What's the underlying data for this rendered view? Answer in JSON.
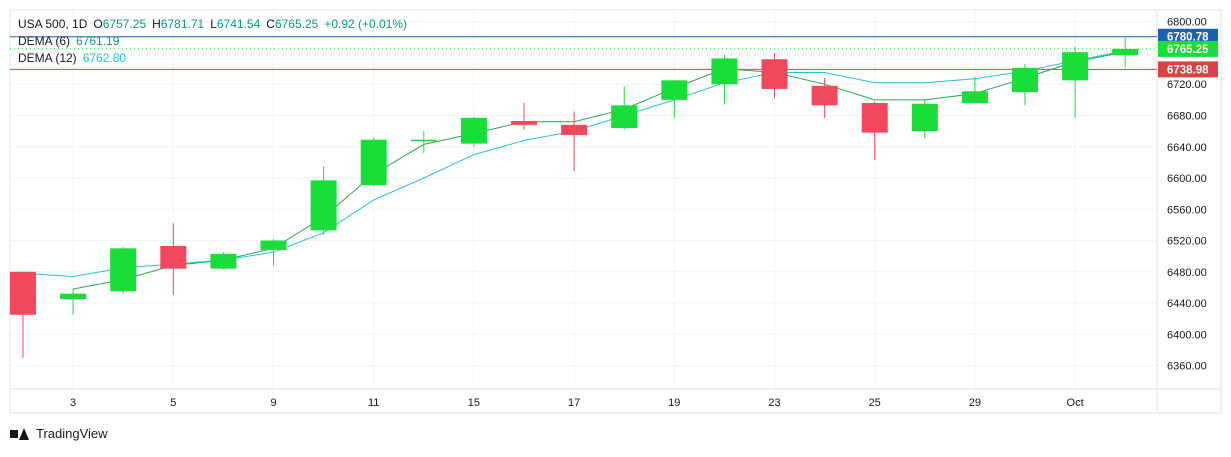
{
  "header": {
    "symbol": "USA 500",
    "interval": "1D",
    "ohlc": {
      "o_label": "O",
      "o": "6757.25",
      "h_label": "H",
      "h": "6781.71",
      "l_label": "L",
      "l": "6741.54",
      "c_label": "C",
      "c": "6765.25",
      "change": "+0.92 (+0.01%)"
    },
    "indicators": [
      {
        "label": "DEMA (6)",
        "value": "6761.19"
      },
      {
        "label": "DEMA (12)",
        "value": "6762.80"
      }
    ]
  },
  "footer": {
    "brand": "TradingView"
  },
  "colors": {
    "up": "#19dd39",
    "down": "#f2485e",
    "dema6": "#2fa34a",
    "dema12": "#22c4d6",
    "price_line_blue": "#1f5fb0",
    "price_line_red": "#d64545",
    "label_current": "#19dd39"
  },
  "chart_data": {
    "type": "candlestick",
    "ylim": [
      6330,
      6815
    ],
    "y_ticks": [
      6360,
      6400,
      6440,
      6480,
      6520,
      6560,
      6600,
      6640,
      6680,
      6720,
      6760,
      6800
    ],
    "x_tick_labels": [
      {
        "index": 1,
        "label": "3"
      },
      {
        "index": 3,
        "label": "5"
      },
      {
        "index": 5,
        "label": "9"
      },
      {
        "index": 7,
        "label": "11"
      },
      {
        "index": 9,
        "label": "15"
      },
      {
        "index": 11,
        "label": "17"
      },
      {
        "index": 13,
        "label": "19"
      },
      {
        "index": 15,
        "label": "23"
      },
      {
        "index": 17,
        "label": "25"
      },
      {
        "index": 19,
        "label": "29"
      },
      {
        "index": 21,
        "label": "Oct"
      }
    ],
    "candles": [
      {
        "o": 6480,
        "h": 6480,
        "l": 6370,
        "c": 6425
      },
      {
        "o": 6445,
        "h": 6458,
        "l": 6425,
        "c": 6452
      },
      {
        "o": 6455,
        "h": 6512,
        "l": 6452,
        "c": 6510
      },
      {
        "o": 6513,
        "h": 6542,
        "l": 6450,
        "c": 6484
      },
      {
        "o": 6484,
        "h": 6505,
        "l": 6483,
        "c": 6503
      },
      {
        "o": 6508,
        "h": 6522,
        "l": 6488,
        "c": 6520
      },
      {
        "o": 6533,
        "h": 6615,
        "l": 6527,
        "c": 6597
      },
      {
        "o": 6591,
        "h": 6652,
        "l": 6590,
        "c": 6649
      },
      {
        "o": 6647,
        "h": 6660,
        "l": 6632,
        "c": 6649
      },
      {
        "o": 6644,
        "h": 6678,
        "l": 6640,
        "c": 6677
      },
      {
        "o": 6673,
        "h": 6696,
        "l": 6662,
        "c": 6668
      },
      {
        "o": 6668,
        "h": 6685,
        "l": 6609,
        "c": 6655
      },
      {
        "o": 6664,
        "h": 6717,
        "l": 6662,
        "c": 6693
      },
      {
        "o": 6700,
        "h": 6725,
        "l": 6677,
        "c": 6725
      },
      {
        "o": 6720,
        "h": 6757,
        "l": 6694,
        "c": 6753
      },
      {
        "o": 6752,
        "h": 6760,
        "l": 6702,
        "c": 6714
      },
      {
        "o": 6718,
        "h": 6728,
        "l": 6677,
        "c": 6693
      },
      {
        "o": 6696,
        "h": 6698,
        "l": 6623,
        "c": 6658
      },
      {
        "o": 6660,
        "h": 6700,
        "l": 6651,
        "c": 6695
      },
      {
        "o": 6696,
        "h": 6730,
        "l": 6696,
        "c": 6711
      },
      {
        "o": 6710,
        "h": 6746,
        "l": 6693,
        "c": 6741
      },
      {
        "o": 6725,
        "h": 6768,
        "l": 6677,
        "c": 6761
      },
      {
        "o": 6757.25,
        "h": 6781.71,
        "l": 6741.54,
        "c": 6765.25
      }
    ],
    "series": [
      {
        "name": "DEMA (6)",
        "values": [
          null,
          6458,
          6470,
          6488,
          6495,
          6510,
          6550,
          6605,
          6643,
          6657,
          6672,
          6672,
          6688,
          6715,
          6740,
          6735,
          6720,
          6700,
          6700,
          6708,
          6728,
          6749,
          6761.19
        ]
      },
      {
        "name": "DEMA (12)",
        "values": [
          6478,
          6474,
          6485,
          6490,
          6495,
          6505,
          6530,
          6572,
          6600,
          6630,
          6648,
          6660,
          6680,
          6700,
          6722,
          6735,
          6735,
          6722,
          6722,
          6727,
          6737,
          6750,
          6762.8
        ]
      }
    ],
    "price_lines": [
      {
        "value": 6780.78,
        "label": "6780.78",
        "style": "solid",
        "color": "#1f5fb0"
      },
      {
        "value": 6765.25,
        "label": "6765.25",
        "style": "dotted",
        "color": "#19dd39"
      },
      {
        "value": 6738.98,
        "label": "6738.98",
        "style": "solid",
        "color": "#d64545"
      }
    ],
    "grid": true
  }
}
